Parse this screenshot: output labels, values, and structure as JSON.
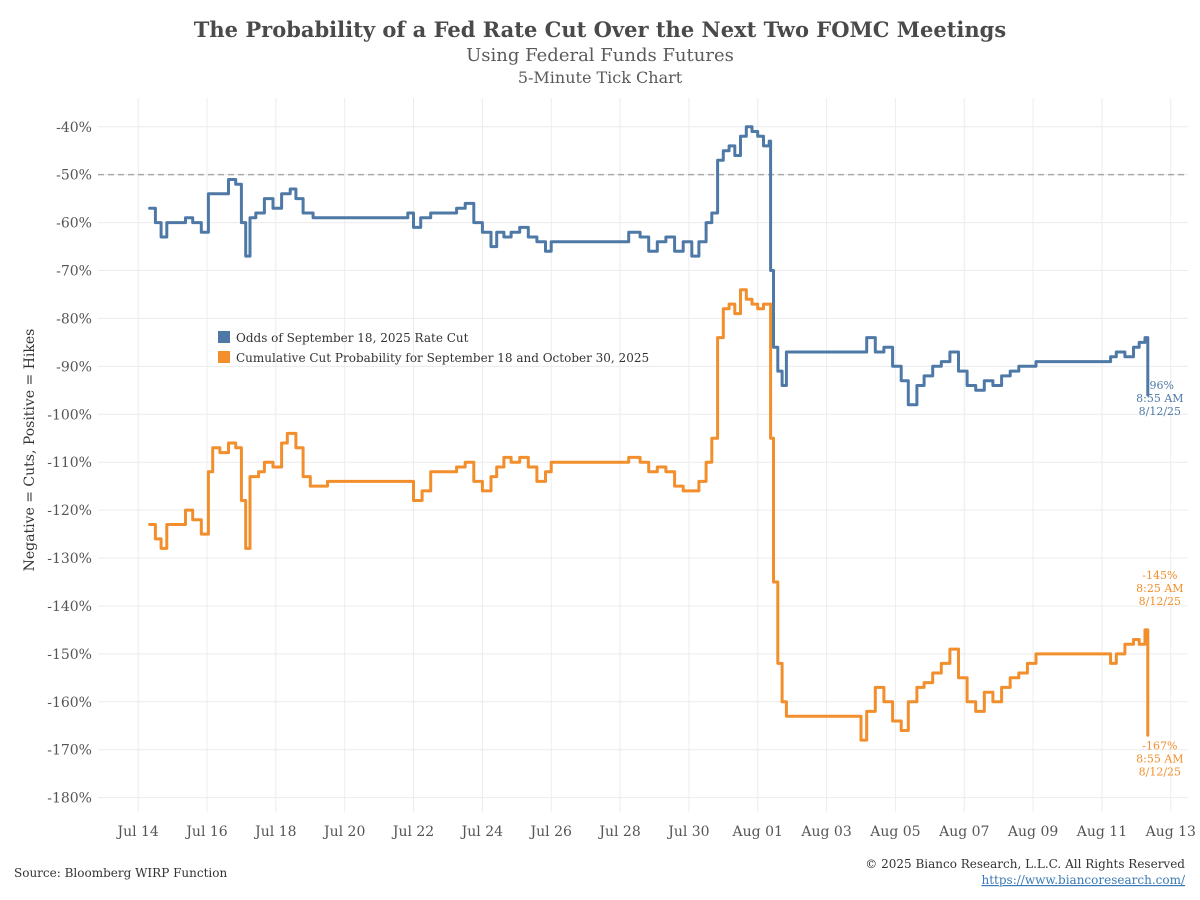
{
  "chart_data": {
    "type": "line",
    "title": "The Probability of a Fed Rate Cut Over the Next Two FOMC Meetings",
    "subtitle": "Using Federal Funds Futures",
    "subtitle2": "5-Minute Tick Chart",
    "ylabel": "Negative = Cuts, Positive = Hikes",
    "xlabel": "",
    "y_range": [
      -183,
      -34
    ],
    "x_range": [
      "2025-07-12T20:00",
      "2025-08-13T12:00"
    ],
    "y_ticks": [
      -40,
      -50,
      -60,
      -70,
      -80,
      -90,
      -100,
      -110,
      -120,
      -130,
      -140,
      -150,
      -160,
      -170,
      -180
    ],
    "y_tick_labels": [
      "-40%",
      "-50%",
      "-60%",
      "-70%",
      "-80%",
      "-90%",
      "-100%",
      "-110%",
      "-120%",
      "-130%",
      "-140%",
      "-150%",
      "-160%",
      "-170%",
      "-180%"
    ],
    "x_ticks": [
      "2025-07-14",
      "2025-07-16",
      "2025-07-18",
      "2025-07-20",
      "2025-07-22",
      "2025-07-24",
      "2025-07-26",
      "2025-07-28",
      "2025-07-30",
      "2025-08-01",
      "2025-08-03",
      "2025-08-05",
      "2025-08-07",
      "2025-08-09",
      "2025-08-11",
      "2025-08-13"
    ],
    "x_tick_labels": [
      "Jul 14",
      "Jul 16",
      "Jul 18",
      "Jul 20",
      "Jul 22",
      "Jul 24",
      "Jul 26",
      "Jul 28",
      "Jul 30",
      "Aug 01",
      "Aug 03",
      "Aug 05",
      "Aug 07",
      "Aug 09",
      "Aug 11",
      "Aug 13"
    ],
    "reference_line": {
      "y": -50,
      "style": "dashed",
      "color": "#a9a9a9"
    },
    "grid": true,
    "legend_position": "upper-left, inside plot",
    "series": [
      {
        "name": "Odds of September 18, 2025 Rate Cut",
        "color": "#4e79a7",
        "points": [
          [
            "2025-07-14T08:00",
            -57
          ],
          [
            "2025-07-14T12:00",
            -60
          ],
          [
            "2025-07-14T16:00",
            -63
          ],
          [
            "2025-07-14T20:00",
            -60
          ],
          [
            "2025-07-15T04:00",
            -60
          ],
          [
            "2025-07-15T09:00",
            -59
          ],
          [
            "2025-07-15T14:00",
            -60
          ],
          [
            "2025-07-15T20:00",
            -62
          ],
          [
            "2025-07-16T01:00",
            -54
          ],
          [
            "2025-07-16T06:00",
            -54
          ],
          [
            "2025-07-16T11:00",
            -54
          ],
          [
            "2025-07-16T15:00",
            -51
          ],
          [
            "2025-07-16T20:00",
            -52
          ],
          [
            "2025-07-17T00:00",
            -60
          ],
          [
            "2025-07-17T03:00",
            -67
          ],
          [
            "2025-07-17T06:00",
            -59
          ],
          [
            "2025-07-17T10:00",
            -58
          ],
          [
            "2025-07-17T16:00",
            -55
          ],
          [
            "2025-07-17T22:00",
            -57
          ],
          [
            "2025-07-18T04:00",
            -54
          ],
          [
            "2025-07-18T10:00",
            -53
          ],
          [
            "2025-07-18T14:00",
            -55
          ],
          [
            "2025-07-18T19:00",
            -58
          ],
          [
            "2025-07-19T02:00",
            -59
          ],
          [
            "2025-07-19T12:00",
            -59
          ],
          [
            "2025-07-20T12:00",
            -59
          ],
          [
            "2025-07-21T12:00",
            -59
          ],
          [
            "2025-07-21T20:00",
            -58
          ],
          [
            "2025-07-22T00:00",
            -61
          ],
          [
            "2025-07-22T05:00",
            -59
          ],
          [
            "2025-07-22T12:00",
            -58
          ],
          [
            "2025-07-23T00:00",
            -58
          ],
          [
            "2025-07-23T06:00",
            -57
          ],
          [
            "2025-07-23T12:00",
            -56
          ],
          [
            "2025-07-23T18:00",
            -60
          ],
          [
            "2025-07-24T00:00",
            -62
          ],
          [
            "2025-07-24T06:00",
            -65
          ],
          [
            "2025-07-24T10:00",
            -62
          ],
          [
            "2025-07-24T15:00",
            -63
          ],
          [
            "2025-07-24T20:00",
            -62
          ],
          [
            "2025-07-25T02:00",
            -61
          ],
          [
            "2025-07-25T08:00",
            -63
          ],
          [
            "2025-07-25T14:00",
            -64
          ],
          [
            "2025-07-25T20:00",
            -66
          ],
          [
            "2025-07-26T00:00",
            -64
          ],
          [
            "2025-07-27T00:00",
            -64
          ],
          [
            "2025-07-28T00:00",
            -64
          ],
          [
            "2025-07-28T06:00",
            -62
          ],
          [
            "2025-07-28T14:00",
            -63
          ],
          [
            "2025-07-28T20:00",
            -66
          ],
          [
            "2025-07-29T02:00",
            -64
          ],
          [
            "2025-07-29T08:00",
            -63
          ],
          [
            "2025-07-29T14:00",
            -66
          ],
          [
            "2025-07-29T20:00",
            -64
          ],
          [
            "2025-07-30T02:00",
            -67
          ],
          [
            "2025-07-30T07:00",
            -64
          ],
          [
            "2025-07-30T12:00",
            -60
          ],
          [
            "2025-07-30T16:00",
            -58
          ],
          [
            "2025-07-30T20:00",
            -47
          ],
          [
            "2025-07-31T00:00",
            -45
          ],
          [
            "2025-07-31T04:00",
            -44
          ],
          [
            "2025-07-31T08:00",
            -46
          ],
          [
            "2025-07-31T12:00",
            -42
          ],
          [
            "2025-07-31T16:00",
            -40
          ],
          [
            "2025-07-31T20:00",
            -41
          ],
          [
            "2025-08-01T00:00",
            -42
          ],
          [
            "2025-08-01T04:00",
            -44
          ],
          [
            "2025-08-01T08:00",
            -43
          ],
          [
            "2025-08-01T09:00",
            -70
          ],
          [
            "2025-08-01T11:00",
            -86
          ],
          [
            "2025-08-01T14:00",
            -91
          ],
          [
            "2025-08-01T17:00",
            -94
          ],
          [
            "2025-08-01T20:00",
            -87
          ],
          [
            "2025-08-02T12:00",
            -87
          ],
          [
            "2025-08-03T12:00",
            -87
          ],
          [
            "2025-08-04T00:00",
            -87
          ],
          [
            "2025-08-04T04:00",
            -84
          ],
          [
            "2025-08-04T10:00",
            -87
          ],
          [
            "2025-08-04T16:00",
            -86
          ],
          [
            "2025-08-04T22:00",
            -90
          ],
          [
            "2025-08-05T04:00",
            -93
          ],
          [
            "2025-08-05T09:00",
            -98
          ],
          [
            "2025-08-05T15:00",
            -94
          ],
          [
            "2025-08-05T20:00",
            -92
          ],
          [
            "2025-08-06T02:00",
            -90
          ],
          [
            "2025-08-06T08:00",
            -89
          ],
          [
            "2025-08-06T14:00",
            -87
          ],
          [
            "2025-08-06T20:00",
            -91
          ],
          [
            "2025-08-07T02:00",
            -94
          ],
          [
            "2025-08-07T08:00",
            -95
          ],
          [
            "2025-08-07T14:00",
            -93
          ],
          [
            "2025-08-07T20:00",
            -94
          ],
          [
            "2025-08-08T02:00",
            -92
          ],
          [
            "2025-08-08T08:00",
            -91
          ],
          [
            "2025-08-08T14:00",
            -90
          ],
          [
            "2025-08-08T20:00",
            -90
          ],
          [
            "2025-08-09T02:00",
            -89
          ],
          [
            "2025-08-09T12:00",
            -89
          ],
          [
            "2025-08-10T12:00",
            -89
          ],
          [
            "2025-08-11T00:00",
            -89
          ],
          [
            "2025-08-11T06:00",
            -88
          ],
          [
            "2025-08-11T10:00",
            -87
          ],
          [
            "2025-08-11T16:00",
            -88
          ],
          [
            "2025-08-11T22:00",
            -86
          ],
          [
            "2025-08-12T02:00",
            -85
          ],
          [
            "2025-08-12T06:00",
            -84
          ],
          [
            "2025-08-12T08:00",
            -96
          ]
        ],
        "end_label": {
          "value": "-96%",
          "time": "8:55 AM",
          "date": "8/12/25"
        }
      },
      {
        "name": "Cumulative Cut Probability for September 18 and October 30, 2025",
        "color": "#f28e2b",
        "points": [
          [
            "2025-07-14T08:00",
            -123
          ],
          [
            "2025-07-14T12:00",
            -126
          ],
          [
            "2025-07-14T16:00",
            -128
          ],
          [
            "2025-07-14T20:00",
            -123
          ],
          [
            "2025-07-15T04:00",
            -123
          ],
          [
            "2025-07-15T09:00",
            -120
          ],
          [
            "2025-07-15T14:00",
            -122
          ],
          [
            "2025-07-15T20:00",
            -125
          ],
          [
            "2025-07-16T01:00",
            -112
          ],
          [
            "2025-07-16T04:00",
            -107
          ],
          [
            "2025-07-16T09:00",
            -108
          ],
          [
            "2025-07-16T15:00",
            -106
          ],
          [
            "2025-07-16T20:00",
            -107
          ],
          [
            "2025-07-17T00:00",
            -118
          ],
          [
            "2025-07-17T03:00",
            -128
          ],
          [
            "2025-07-17T06:00",
            -113
          ],
          [
            "2025-07-17T12:00",
            -112
          ],
          [
            "2025-07-17T16:00",
            -110
          ],
          [
            "2025-07-17T22:00",
            -111
          ],
          [
            "2025-07-18T04:00",
            -106
          ],
          [
            "2025-07-18T08:00",
            -104
          ],
          [
            "2025-07-18T14:00",
            -107
          ],
          [
            "2025-07-18T19:00",
            -113
          ],
          [
            "2025-07-19T00:00",
            -115
          ],
          [
            "2025-07-19T08:00",
            -115
          ],
          [
            "2025-07-19T12:00",
            -114
          ],
          [
            "2025-07-20T12:00",
            -114
          ],
          [
            "2025-07-21T12:00",
            -114
          ],
          [
            "2025-07-21T20:00",
            -114
          ],
          [
            "2025-07-22T00:00",
            -118
          ],
          [
            "2025-07-22T06:00",
            -116
          ],
          [
            "2025-07-22T12:00",
            -112
          ],
          [
            "2025-07-23T00:00",
            -112
          ],
          [
            "2025-07-23T06:00",
            -111
          ],
          [
            "2025-07-23T12:00",
            -110
          ],
          [
            "2025-07-23T18:00",
            -114
          ],
          [
            "2025-07-24T00:00",
            -116
          ],
          [
            "2025-07-24T06:00",
            -113
          ],
          [
            "2025-07-24T10:00",
            -111
          ],
          [
            "2025-07-24T15:00",
            -109
          ],
          [
            "2025-07-24T20:00",
            -110
          ],
          [
            "2025-07-25T02:00",
            -109
          ],
          [
            "2025-07-25T08:00",
            -111
          ],
          [
            "2025-07-25T14:00",
            -114
          ],
          [
            "2025-07-25T20:00",
            -112
          ],
          [
            "2025-07-26T00:00",
            -110
          ],
          [
            "2025-07-27T00:00",
            -110
          ],
          [
            "2025-07-28T00:00",
            -110
          ],
          [
            "2025-07-28T06:00",
            -109
          ],
          [
            "2025-07-28T14:00",
            -110
          ],
          [
            "2025-07-28T20:00",
            -112
          ],
          [
            "2025-07-29T02:00",
            -111
          ],
          [
            "2025-07-29T08:00",
            -112
          ],
          [
            "2025-07-29T14:00",
            -115
          ],
          [
            "2025-07-29T20:00",
            -116
          ],
          [
            "2025-07-30T02:00",
            -116
          ],
          [
            "2025-07-30T07:00",
            -114
          ],
          [
            "2025-07-30T12:00",
            -110
          ],
          [
            "2025-07-30T16:00",
            -105
          ],
          [
            "2025-07-30T20:00",
            -84
          ],
          [
            "2025-07-31T00:00",
            -78
          ],
          [
            "2025-07-31T04:00",
            -77
          ],
          [
            "2025-07-31T08:00",
            -79
          ],
          [
            "2025-07-31T12:00",
            -74
          ],
          [
            "2025-07-31T16:00",
            -76
          ],
          [
            "2025-07-31T20:00",
            -77
          ],
          [
            "2025-08-01T00:00",
            -78
          ],
          [
            "2025-08-01T04:00",
            -77
          ],
          [
            "2025-08-01T08:00",
            -77
          ],
          [
            "2025-08-01T09:00",
            -105
          ],
          [
            "2025-08-01T11:00",
            -135
          ],
          [
            "2025-08-01T14:00",
            -152
          ],
          [
            "2025-08-01T17:00",
            -160
          ],
          [
            "2025-08-01T20:00",
            -163
          ],
          [
            "2025-08-02T00:00",
            -163
          ],
          [
            "2025-08-02T12:00",
            -163
          ],
          [
            "2025-08-03T12:00",
            -163
          ],
          [
            "2025-08-03T20:00",
            -163
          ],
          [
            "2025-08-04T00:00",
            -168
          ],
          [
            "2025-08-04T04:00",
            -162
          ],
          [
            "2025-08-04T10:00",
            -157
          ],
          [
            "2025-08-04T16:00",
            -160
          ],
          [
            "2025-08-04T22:00",
            -164
          ],
          [
            "2025-08-05T04:00",
            -166
          ],
          [
            "2025-08-05T09:00",
            -160
          ],
          [
            "2025-08-05T15:00",
            -157
          ],
          [
            "2025-08-05T20:00",
            -156
          ],
          [
            "2025-08-06T02:00",
            -154
          ],
          [
            "2025-08-06T08:00",
            -152
          ],
          [
            "2025-08-06T14:00",
            -149
          ],
          [
            "2025-08-06T20:00",
            -155
          ],
          [
            "2025-08-07T02:00",
            -160
          ],
          [
            "2025-08-07T08:00",
            -162
          ],
          [
            "2025-08-07T14:00",
            -158
          ],
          [
            "2025-08-07T20:00",
            -160
          ],
          [
            "2025-08-08T02:00",
            -157
          ],
          [
            "2025-08-08T08:00",
            -155
          ],
          [
            "2025-08-08T14:00",
            -154
          ],
          [
            "2025-08-08T20:00",
            -152
          ],
          [
            "2025-08-09T02:00",
            -150
          ],
          [
            "2025-08-09T12:00",
            -150
          ],
          [
            "2025-08-10T12:00",
            -150
          ],
          [
            "2025-08-11T00:00",
            -150
          ],
          [
            "2025-08-11T06:00",
            -152
          ],
          [
            "2025-08-11T10:00",
            -150
          ],
          [
            "2025-08-11T16:00",
            -148
          ],
          [
            "2025-08-11T22:00",
            -147
          ],
          [
            "2025-08-12T02:00",
            -148
          ],
          [
            "2025-08-12T06:00",
            -145
          ],
          [
            "2025-08-12T08:00",
            -167
          ]
        ],
        "peak_label": {
          "value": "-145%",
          "time": "8:25 AM",
          "date": "8/12/25"
        },
        "end_label": {
          "value": "-167%",
          "time": "8:55 AM",
          "date": "8/12/25"
        }
      }
    ]
  },
  "footer": {
    "source": "Source: Bloomberg WIRP Function",
    "copyright": "© 2025 Bianco Research, L.L.C. All Rights Reserved",
    "link": "https://www.biancoresearch.com/"
  },
  "colors": {
    "blue": "#4e79a7",
    "orange": "#f28e2b",
    "grid": "#ececec",
    "reference": "#a9a9a9"
  }
}
